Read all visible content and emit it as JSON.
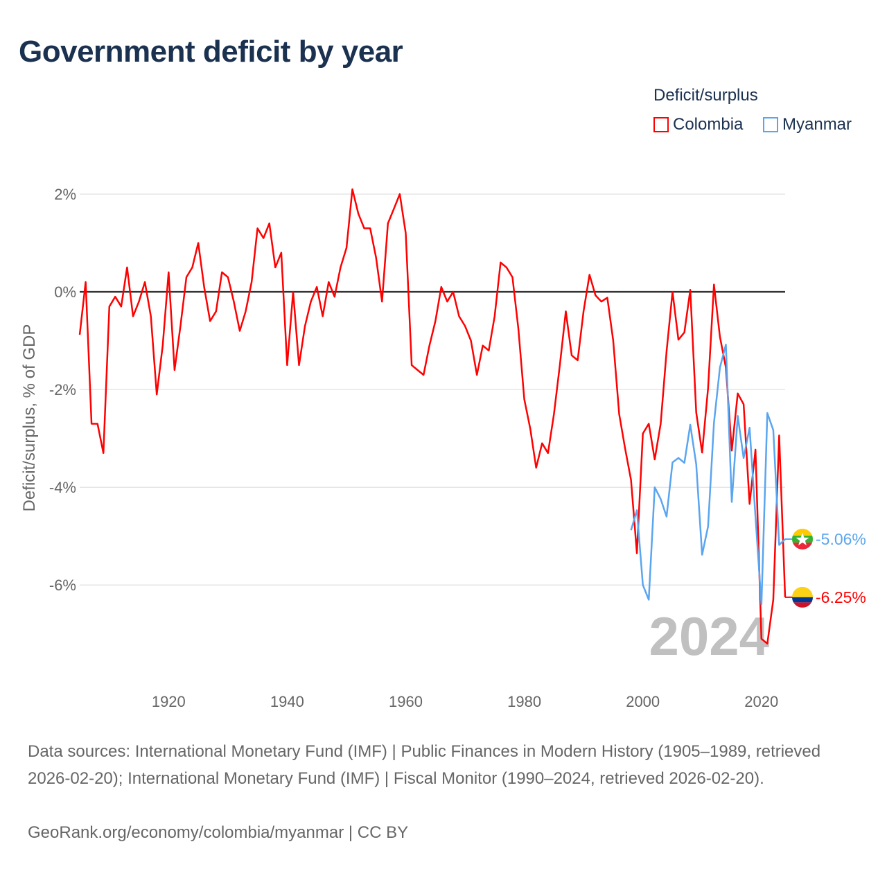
{
  "title": "Government deficit by year",
  "legend": {
    "title": "Deficit/surplus",
    "items": [
      {
        "name": "Colombia",
        "color": "#ff0000"
      },
      {
        "name": "Myanmar",
        "color": "#5aa5ef"
      }
    ]
  },
  "chart_data": {
    "type": "line",
    "title": "Government deficit by year",
    "xlabel": "",
    "ylabel": "Deficit/surplus, % of GDP",
    "xlim": [
      1905,
      2024
    ],
    "ylim": [
      -7.5,
      2.2
    ],
    "xticks": [
      1920,
      1940,
      1960,
      1980,
      2000,
      2020
    ],
    "yticks": [
      {
        "v": 2,
        "label": "2%"
      },
      {
        "v": 0,
        "label": "0%"
      },
      {
        "v": -2,
        "label": "-2%"
      },
      {
        "v": -4,
        "label": "-4%"
      },
      {
        "v": -6,
        "label": "-6%"
      }
    ],
    "grid": true,
    "year_label": "2024",
    "series": [
      {
        "name": "Colombia",
        "color": "#ff0000",
        "start": 1905,
        "end_label": "-6.25%",
        "values": [
          -0.88,
          0.2,
          -2.7,
          -2.7,
          -3.3,
          -0.3,
          -0.1,
          -0.3,
          0.5,
          -0.5,
          -0.2,
          0.2,
          -0.5,
          -2.1,
          -1.1,
          0.4,
          -1.6,
          -0.7,
          0.3,
          0.5,
          1.0,
          0.1,
          -0.6,
          -0.4,
          0.4,
          0.3,
          -0.2,
          -0.8,
          -0.4,
          0.2,
          1.3,
          1.1,
          1.4,
          0.5,
          0.8,
          -1.5,
          0,
          -1.5,
          -0.7,
          -0.2,
          0.1,
          -0.5,
          0.2,
          -0.1,
          0.5,
          0.9,
          2.1,
          1.6,
          1.3,
          1.3,
          0.7,
          -0.2,
          1.4,
          1.7,
          2.0,
          1.2,
          -1.5,
          -1.6,
          -1.7,
          -1.1,
          -0.6,
          0.1,
          -0.2,
          0,
          -0.5,
          -0.7,
          -1.0,
          -1.7,
          -1.1,
          -1.2,
          -0.5,
          0.6,
          0.5,
          0.3,
          -0.75,
          -2.2,
          -2.8,
          -3.6,
          -3.1,
          -3.3,
          -2.5,
          -1.5,
          -0.4,
          -1.3,
          -1.4,
          -0.4,
          0.35,
          -0.07,
          -0.2,
          -0.12,
          -1.0,
          -2.5,
          -3.2,
          -3.85,
          -5.35,
          -2.9,
          -2.7,
          -3.43,
          -2.7,
          -1.22,
          0,
          -0.98,
          -0.83,
          0.04,
          -2.47,
          -3.29,
          -1.97,
          0.15,
          -0.92,
          -1.55,
          -3.25,
          -2.08,
          -2.3,
          -4.34,
          -3.23,
          -7.1,
          -7.2,
          -6.3,
          -2.94,
          -6.25
        ]
      },
      {
        "name": "Myanmar",
        "color": "#5aa5ef",
        "start": 1998,
        "end_label": "-5.06%",
        "values": [
          -4.88,
          -4.47,
          -6.0,
          -6.3,
          -4.0,
          -4.24,
          -4.6,
          -3.49,
          -3.4,
          -3.5,
          -2.72,
          -3.53,
          -5.38,
          -4.8,
          -2.68,
          -1.55,
          -1.08,
          -4.3,
          -2.54,
          -3.4,
          -2.78,
          -4.6,
          -6.4,
          -2.48,
          -2.83,
          -5.18,
          -5.06
        ]
      }
    ]
  },
  "footer": {
    "sources": "Data sources: International Monetary Fund (IMF) | Public Finances in Modern History (1905–1989, retrieved 2026-02-20); International Monetary Fund (IMF) | Fiscal Monitor (1990–2024, retrieved 2026-02-20).",
    "link": "GeoRank.org/economy/colombia/myanmar | CC BY"
  }
}
